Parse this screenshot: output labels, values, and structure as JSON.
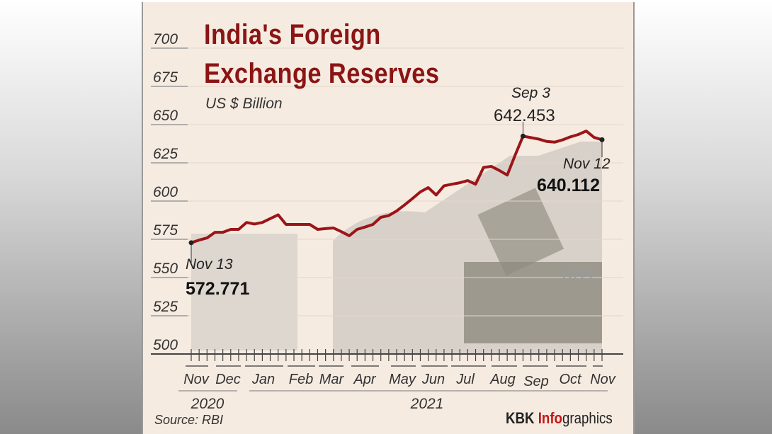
{
  "chart_data": {
    "type": "line",
    "title": "India's Foreign Exchange Reserves",
    "subtitle": "US $ Billion",
    "ylim": [
      500,
      700
    ],
    "yticks": [
      500,
      525,
      550,
      575,
      600,
      625,
      650,
      675,
      700
    ],
    "grid": true,
    "x_month_labels": [
      "Nov",
      "Dec",
      "Jan",
      "Feb",
      "Mar",
      "Apr",
      "May",
      "Jun",
      "Jul",
      "Aug",
      "Sep",
      "Oct",
      "Nov"
    ],
    "x_year_labels": [
      "2020",
      "2021"
    ],
    "series": [
      {
        "color": "#9b1518",
        "x": [
          "2020-11-13",
          "2020-11-20",
          "2020-11-27",
          "2020-12-04",
          "2020-12-11",
          "2020-12-18",
          "2020-12-25",
          "2021-01-01",
          "2021-01-08",
          "2021-01-15",
          "2021-01-22",
          "2021-01-29",
          "2021-02-05",
          "2021-02-12",
          "2021-02-19",
          "2021-02-26",
          "2021-03-05",
          "2021-03-12",
          "2021-03-19",
          "2021-03-26",
          "2021-04-02",
          "2021-04-09",
          "2021-04-16",
          "2021-04-23",
          "2021-04-30",
          "2021-05-07",
          "2021-05-14",
          "2021-05-21",
          "2021-05-28",
          "2021-06-04",
          "2021-06-11",
          "2021-06-18",
          "2021-06-25",
          "2021-07-02",
          "2021-07-09",
          "2021-07-16",
          "2021-07-23",
          "2021-07-30",
          "2021-08-06",
          "2021-08-13",
          "2021-08-20",
          "2021-08-27",
          "2021-09-03",
          "2021-09-10",
          "2021-09-17",
          "2021-09-24",
          "2021-10-01",
          "2021-10-08",
          "2021-10-15",
          "2021-10-22",
          "2021-10-29",
          "2021-11-05",
          "2021-11-12"
        ],
        "y": [
          572.771,
          574.5,
          575.9,
          579.6,
          579.6,
          581.5,
          581.5,
          586.0,
          585.0,
          586.0,
          588.5,
          591.0,
          584.7,
          584.7,
          584.7,
          584.7,
          581.5,
          582.0,
          582.4,
          580.0,
          577.3,
          581.5,
          583.0,
          584.7,
          589.4,
          590.5,
          593.5,
          597.5,
          601.6,
          606.0,
          608.8,
          604.0,
          610.0,
          611.0,
          612.0,
          613.4,
          611.0,
          622.0,
          622.7,
          620.0,
          617.0,
          630.0,
          642.453,
          641.5,
          640.5,
          639.0,
          638.5,
          640.0,
          642.0,
          643.5,
          645.8,
          641.6,
          640.112
        ]
      }
    ],
    "annotations": [
      {
        "date": "Nov 13",
        "value": "572.771"
      },
      {
        "date": "Sep 3",
        "value": "642.453"
      },
      {
        "date": "Nov 12",
        "value": "640.112"
      }
    ]
  },
  "source": "Source: RBI",
  "brand": {
    "part1": "KBK ",
    "part2": "Info",
    "part3": "graphics"
  },
  "watermark": "KB4"
}
